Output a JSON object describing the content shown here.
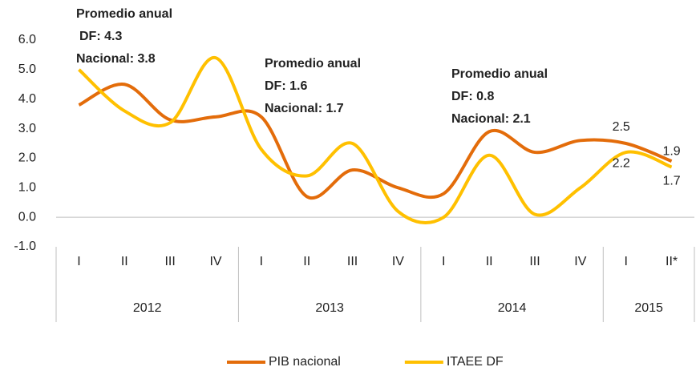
{
  "chart_data": {
    "type": "line",
    "categories": [
      "I",
      "II",
      "III",
      "IV",
      "I",
      "II",
      "III",
      "IV",
      "I",
      "II",
      "III",
      "IV",
      "I",
      "II*"
    ],
    "groups": [
      {
        "label": "2012",
        "size": 4
      },
      {
        "label": "2013",
        "size": 4
      },
      {
        "label": "2014",
        "size": 4
      },
      {
        "label": "2015",
        "size": 2
      }
    ],
    "series": [
      {
        "name": "PIB nacional",
        "color": "#e36c0a",
        "values": [
          3.8,
          4.5,
          3.3,
          3.4,
          3.4,
          0.7,
          1.6,
          1.0,
          0.8,
          2.9,
          2.2,
          2.6,
          2.5,
          1.9
        ],
        "value_labels": [
          null,
          null,
          null,
          null,
          null,
          null,
          null,
          null,
          null,
          null,
          null,
          null,
          "2.5",
          "1.9"
        ]
      },
      {
        "name": "ITAEE DF",
        "color": "#ffc000",
        "values": [
          5.0,
          3.6,
          3.2,
          5.4,
          2.3,
          1.4,
          2.5,
          0.2,
          0.0,
          2.1,
          0.1,
          1.0,
          2.2,
          1.7
        ],
        "value_labels": [
          null,
          null,
          null,
          null,
          null,
          null,
          null,
          null,
          null,
          null,
          null,
          null,
          "2.2",
          "1.7"
        ]
      }
    ],
    "ylim": [
      -1,
      6
    ],
    "yticks": [
      {
        "value": -1,
        "label": "-1.0"
      },
      {
        "value": 0,
        "label": "0.0"
      },
      {
        "value": 1,
        "label": "1.0"
      },
      {
        "value": 2,
        "label": "2.0"
      },
      {
        "value": 3,
        "label": "3.0"
      },
      {
        "value": 4,
        "label": "4.0"
      },
      {
        "value": 5,
        "label": "5.0"
      },
      {
        "value": 6,
        "label": "6.0"
      }
    ],
    "annotations": [
      {
        "lines": [
          "Promedio anual",
          "DF: 4.3",
          "Nacional: 3.8"
        ]
      },
      {
        "lines": [
          "Promedio  anual",
          "DF: 1.6",
          "Nacional: 1.7"
        ]
      },
      {
        "lines": [
          "Promedio anual",
          "DF: 0.8",
          "Nacional: 2.1"
        ]
      }
    ],
    "legend": "bottom"
  }
}
